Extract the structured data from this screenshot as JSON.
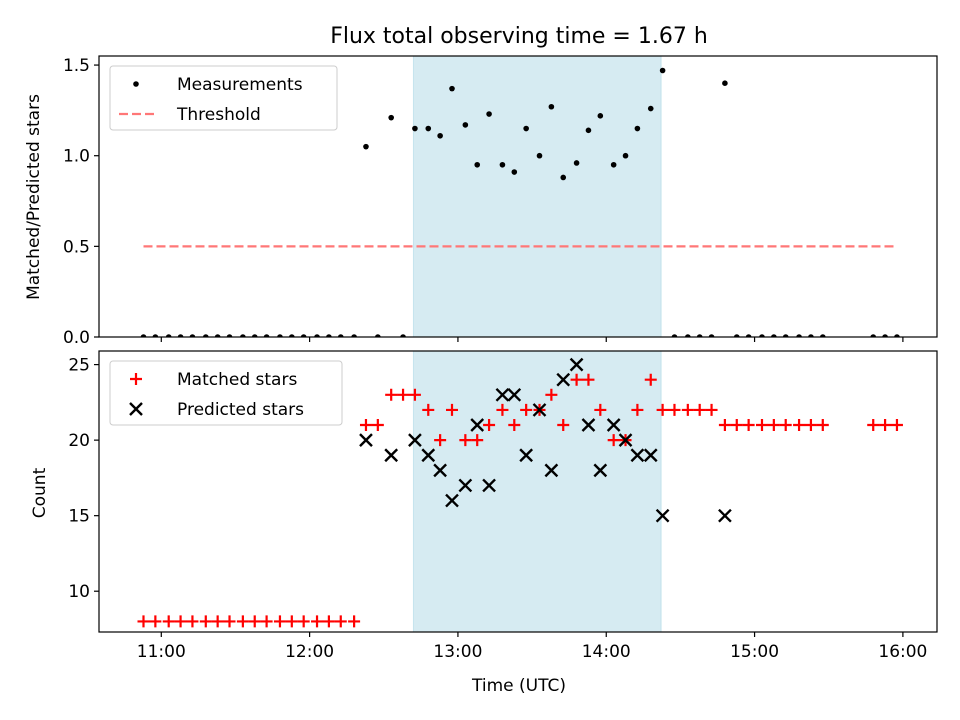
{
  "chart_data": {
    "title": "Flux total observing time = 1.67 h",
    "xlabel": "Time (UTC)",
    "x_units": "hours UTC",
    "xlim": [
      10.58,
      16.23
    ],
    "x_ticks": [
      11,
      12,
      13,
      14,
      15,
      16
    ],
    "x_tick_labels": [
      "11:00",
      "12:00",
      "13:00",
      "14:00",
      "15:00",
      "16:00"
    ],
    "shaded_span": {
      "x": [
        12.7,
        14.37
      ],
      "color": "#add8e6"
    },
    "grid": false,
    "subplots": [
      {
        "type": "scatter",
        "ylabel": "Matched/Predicted stars",
        "ylim": [
          0,
          1.55
        ],
        "y_ticks": [
          0.0,
          0.5,
          1.0,
          1.5
        ],
        "y_tick_labels": [
          "0.0",
          "0.5",
          "1.0",
          "1.5"
        ],
        "legend": {
          "position": "upper-left",
          "entries": [
            "Measurements",
            "Threshold"
          ]
        },
        "series": [
          {
            "name": "Measurements",
            "marker": "dot",
            "color": "#000000",
            "points": [
              [
                10.88,
                0
              ],
              [
                10.96,
                0
              ],
              [
                11.05,
                0
              ],
              [
                11.13,
                0
              ],
              [
                11.21,
                0
              ],
              [
                11.3,
                0
              ],
              [
                11.38,
                0
              ],
              [
                11.46,
                0
              ],
              [
                11.55,
                0
              ],
              [
                11.63,
                0
              ],
              [
                11.71,
                0
              ],
              [
                11.8,
                0
              ],
              [
                11.88,
                0
              ],
              [
                11.96,
                0
              ],
              [
                12.05,
                0
              ],
              [
                12.13,
                0
              ],
              [
                12.21,
                0
              ],
              [
                12.3,
                0
              ],
              [
                12.38,
                1.05
              ],
              [
                12.46,
                0
              ],
              [
                12.55,
                1.21
              ],
              [
                12.63,
                0
              ],
              [
                12.71,
                1.15
              ],
              [
                12.8,
                1.15
              ],
              [
                12.88,
                1.11
              ],
              [
                12.96,
                1.37
              ],
              [
                13.05,
                1.17
              ],
              [
                13.13,
                0.95
              ],
              [
                13.21,
                1.23
              ],
              [
                13.3,
                0.95
              ],
              [
                13.38,
                0.91
              ],
              [
                13.46,
                1.15
              ],
              [
                13.55,
                1.0
              ],
              [
                13.63,
                1.27
              ],
              [
                13.71,
                0.88
              ],
              [
                13.8,
                0.96
              ],
              [
                13.88,
                1.14
              ],
              [
                13.96,
                1.22
              ],
              [
                14.05,
                0.95
              ],
              [
                14.13,
                1.0
              ],
              [
                14.21,
                1.15
              ],
              [
                14.3,
                1.26
              ],
              [
                14.38,
                1.47
              ],
              [
                14.46,
                0
              ],
              [
                14.55,
                0
              ],
              [
                14.63,
                0
              ],
              [
                14.71,
                0
              ],
              [
                14.8,
                1.4
              ],
              [
                14.88,
                0
              ],
              [
                14.96,
                0
              ],
              [
                15.05,
                0
              ],
              [
                15.13,
                0
              ],
              [
                15.21,
                0
              ],
              [
                15.3,
                0
              ],
              [
                15.38,
                0
              ],
              [
                15.46,
                0
              ],
              [
                15.8,
                0
              ],
              [
                15.88,
                0
              ],
              [
                15.96,
                0
              ]
            ]
          },
          {
            "name": "Threshold",
            "style": "dashed",
            "color": "#ff7777",
            "points": [
              [
                10.88,
                0.5
              ],
              [
                15.96,
                0.5
              ]
            ]
          }
        ]
      },
      {
        "type": "scatter",
        "ylabel": "Count",
        "ylim": [
          7.3,
          25.9
        ],
        "y_ticks": [
          10,
          15,
          20,
          25
        ],
        "y_tick_labels": [
          "10",
          "15",
          "20",
          "25"
        ],
        "legend": {
          "position": "upper-left",
          "entries": [
            "Matched stars",
            "Predicted stars"
          ]
        },
        "series": [
          {
            "name": "Matched stars",
            "marker": "plus",
            "color": "#ff0000",
            "points": [
              [
                10.88,
                8
              ],
              [
                10.96,
                8
              ],
              [
                11.05,
                8
              ],
              [
                11.13,
                8
              ],
              [
                11.21,
                8
              ],
              [
                11.3,
                8
              ],
              [
                11.38,
                8
              ],
              [
                11.46,
                8
              ],
              [
                11.55,
                8
              ],
              [
                11.63,
                8
              ],
              [
                11.71,
                8
              ],
              [
                11.8,
                8
              ],
              [
                11.88,
                8
              ],
              [
                11.96,
                8
              ],
              [
                12.05,
                8
              ],
              [
                12.13,
                8
              ],
              [
                12.21,
                8
              ],
              [
                12.3,
                8
              ],
              [
                12.38,
                21
              ],
              [
                12.46,
                21
              ],
              [
                12.55,
                23
              ],
              [
                12.63,
                23
              ],
              [
                12.71,
                23
              ],
              [
                12.8,
                22
              ],
              [
                12.88,
                20
              ],
              [
                12.96,
                22
              ],
              [
                13.05,
                20
              ],
              [
                13.13,
                20
              ],
              [
                13.21,
                21
              ],
              [
                13.3,
                22
              ],
              [
                13.38,
                21
              ],
              [
                13.46,
                22
              ],
              [
                13.55,
                22
              ],
              [
                13.63,
                23
              ],
              [
                13.71,
                21
              ],
              [
                13.8,
                24
              ],
              [
                13.88,
                24
              ],
              [
                13.96,
                22
              ],
              [
                14.05,
                20
              ],
              [
                14.13,
                20
              ],
              [
                14.21,
                22
              ],
              [
                14.3,
                24
              ],
              [
                14.38,
                22
              ],
              [
                14.46,
                22
              ],
              [
                14.55,
                22
              ],
              [
                14.63,
                22
              ],
              [
                14.71,
                22
              ],
              [
                14.8,
                21
              ],
              [
                14.88,
                21
              ],
              [
                14.96,
                21
              ],
              [
                15.05,
                21
              ],
              [
                15.13,
                21
              ],
              [
                15.21,
                21
              ],
              [
                15.3,
                21
              ],
              [
                15.38,
                21
              ],
              [
                15.46,
                21
              ],
              [
                15.8,
                21
              ],
              [
                15.88,
                21
              ],
              [
                15.96,
                21
              ]
            ]
          },
          {
            "name": "Predicted stars",
            "marker": "x",
            "color": "#000000",
            "points": [
              [
                12.38,
                20
              ],
              [
                12.55,
                19
              ],
              [
                12.71,
                20
              ],
              [
                12.8,
                19
              ],
              [
                12.88,
                18
              ],
              [
                12.96,
                16
              ],
              [
                13.05,
                17
              ],
              [
                13.13,
                21
              ],
              [
                13.21,
                17
              ],
              [
                13.3,
                23
              ],
              [
                13.38,
                23
              ],
              [
                13.46,
                19
              ],
              [
                13.55,
                22
              ],
              [
                13.63,
                18
              ],
              [
                13.71,
                24
              ],
              [
                13.8,
                25
              ],
              [
                13.88,
                21
              ],
              [
                13.96,
                18
              ],
              [
                14.05,
                21
              ],
              [
                14.13,
                20
              ],
              [
                14.21,
                19
              ],
              [
                14.3,
                19
              ],
              [
                14.38,
                15
              ],
              [
                14.8,
                15
              ]
            ]
          }
        ]
      }
    ]
  }
}
